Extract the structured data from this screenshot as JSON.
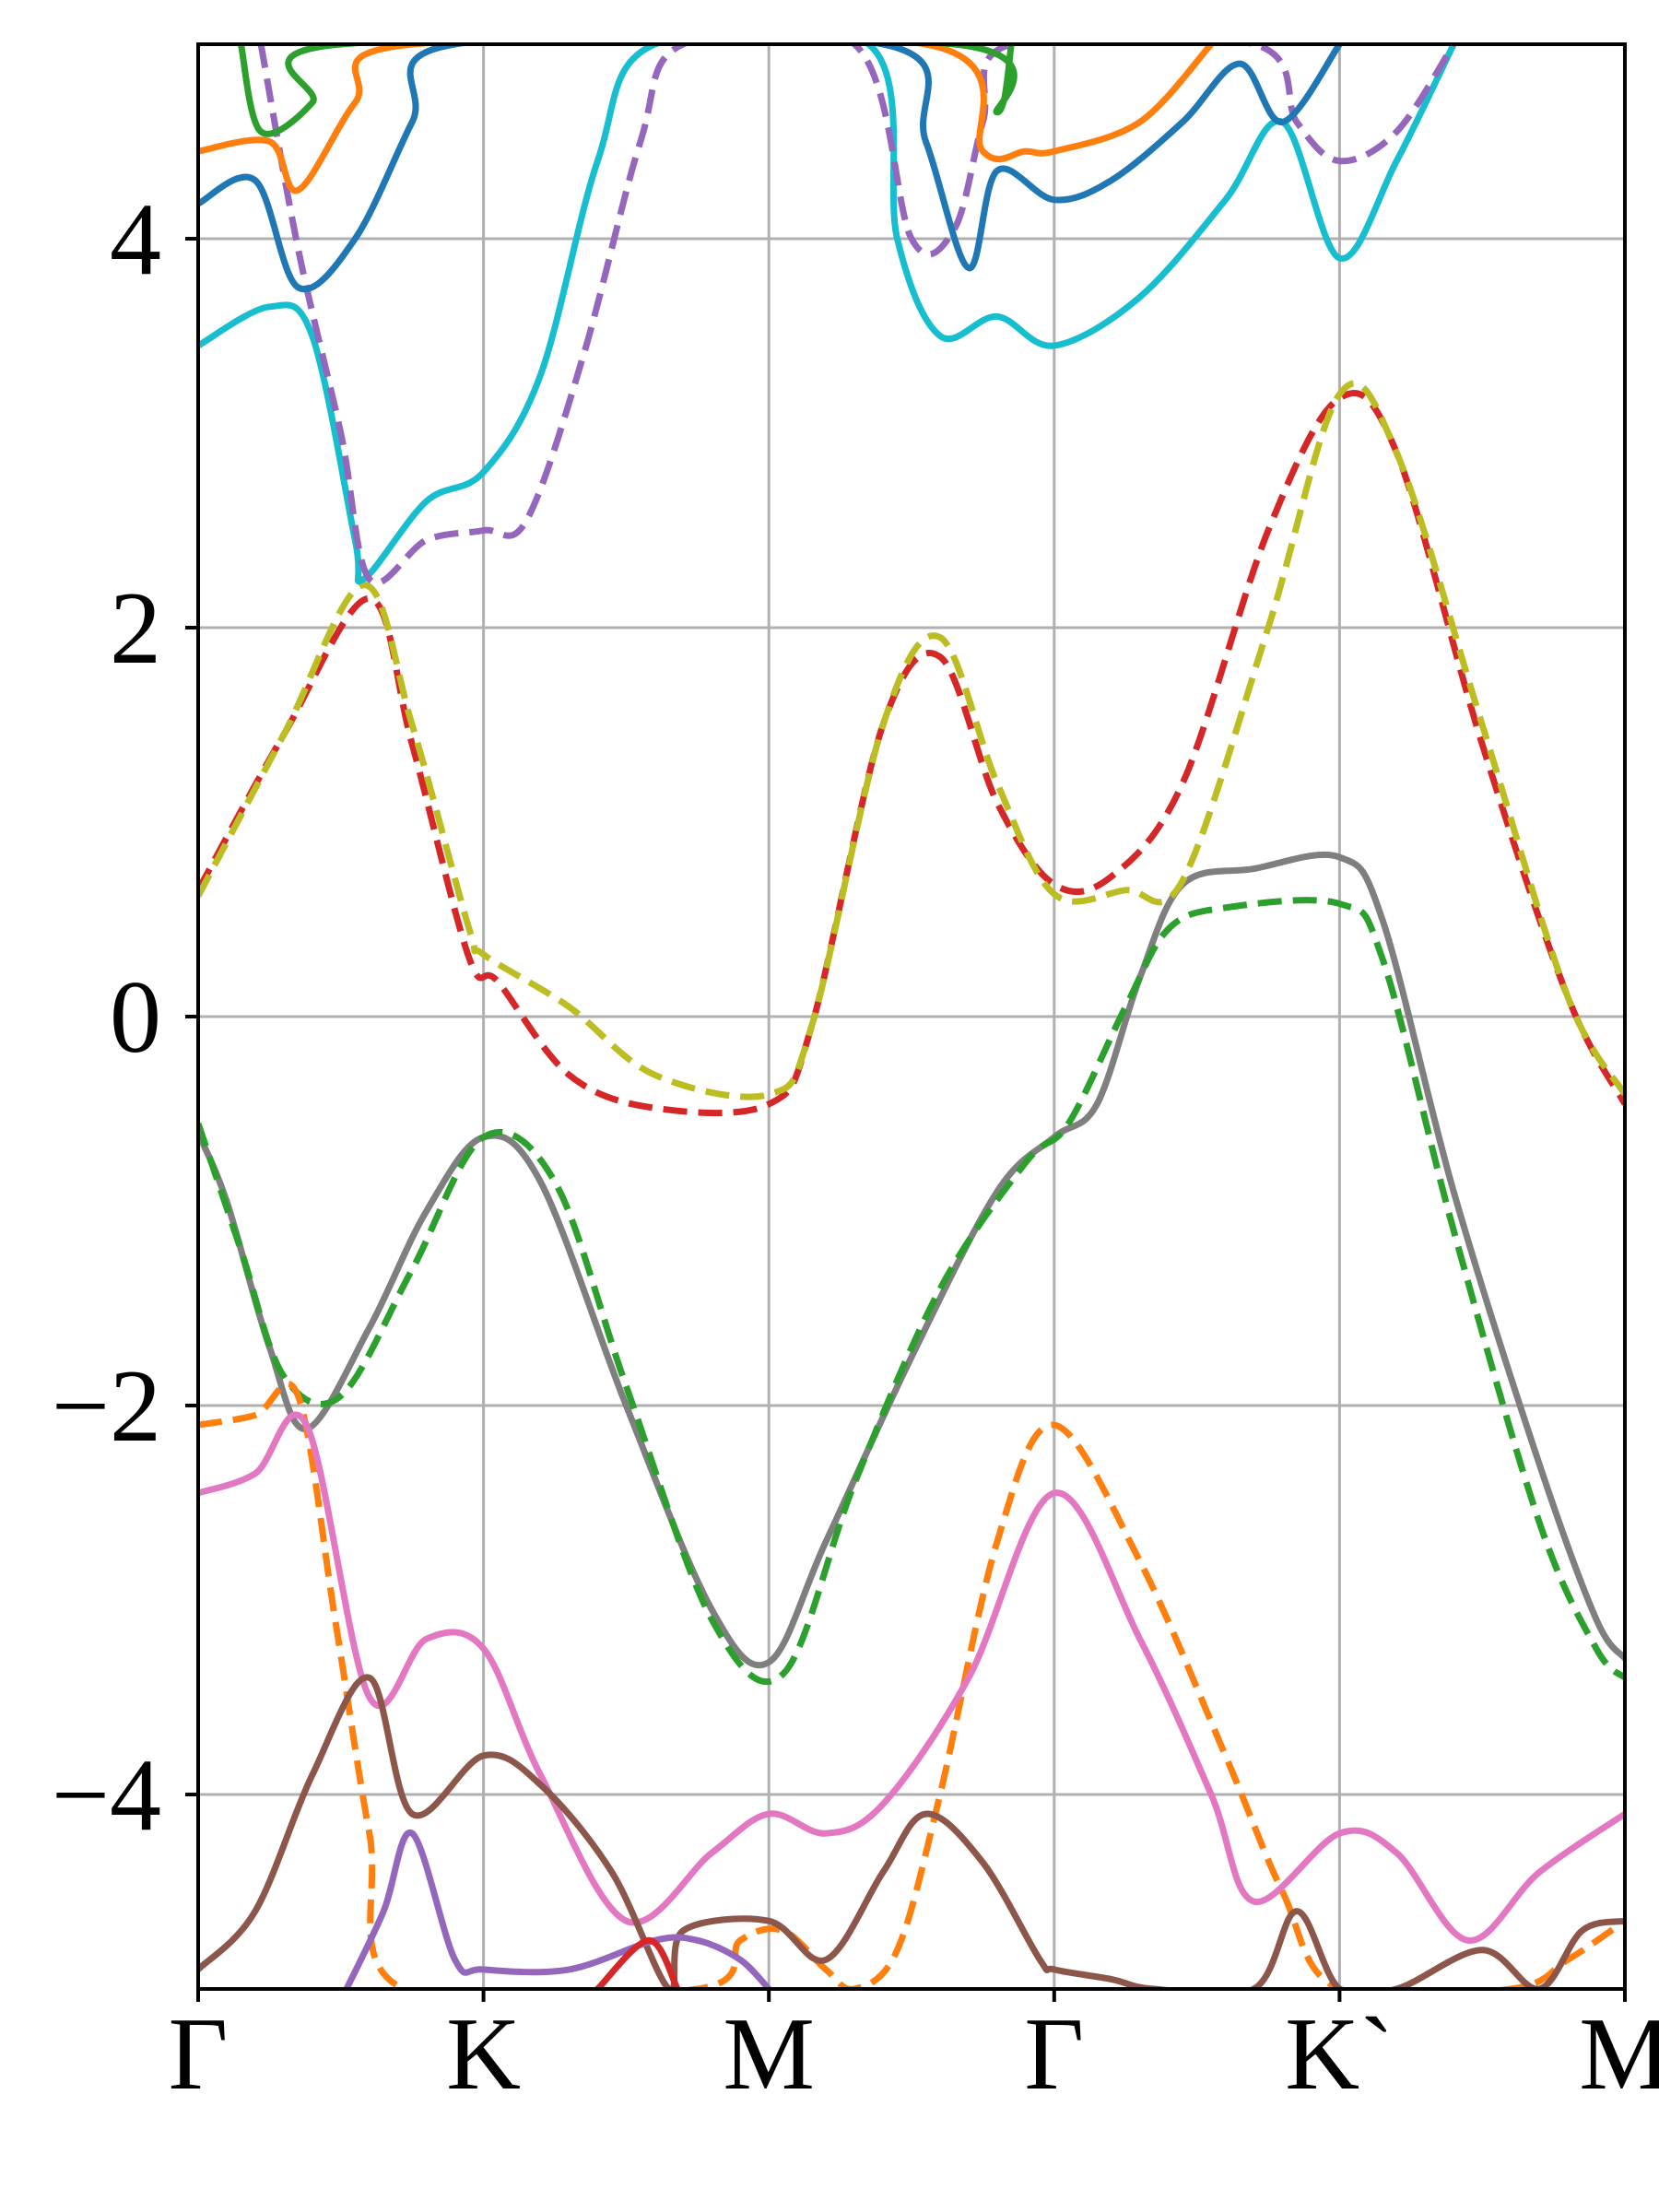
{
  "chart_data": {
    "type": "line",
    "title": "",
    "xlabel": "",
    "ylabel": "",
    "xlim": [
      0,
      5
    ],
    "ylim": [
      -5,
      5
    ],
    "grid": true,
    "legend": "none",
    "x_ticks": [
      {
        "value": 0,
        "label": "Γ"
      },
      {
        "value": 1,
        "label": "K"
      },
      {
        "value": 2,
        "label": "M"
      },
      {
        "value": 3,
        "label": "Γ"
      },
      {
        "value": 4,
        "label": "K`"
      },
      {
        "value": 5,
        "label": "M"
      }
    ],
    "y_ticks": [
      {
        "value": -4,
        "label": "−4"
      },
      {
        "value": -2,
        "label": "−2"
      },
      {
        "value": 0,
        "label": "0"
      },
      {
        "value": 2,
        "label": "2"
      },
      {
        "value": 4,
        "label": "4"
      }
    ],
    "series": [
      {
        "id": "valence-solid-gray",
        "color": "#7f7f7f",
        "dash": false,
        "points": [
          [
            0,
            -0.6
          ],
          [
            0.1,
            -0.95
          ],
          [
            0.25,
            -1.7
          ],
          [
            0.38,
            -2.12
          ],
          [
            0.6,
            -1.6
          ],
          [
            0.8,
            -1.0
          ],
          [
            1.0,
            -0.62
          ],
          [
            1.2,
            -0.85
          ],
          [
            1.5,
            -2.0
          ],
          [
            1.8,
            -3.05
          ],
          [
            2.0,
            -3.32
          ],
          [
            2.2,
            -2.7
          ],
          [
            2.5,
            -1.75
          ],
          [
            2.8,
            -0.9
          ],
          [
            3.0,
            -0.62
          ],
          [
            3.15,
            -0.45
          ],
          [
            3.3,
            0.2
          ],
          [
            3.45,
            0.68
          ],
          [
            3.7,
            0.76
          ],
          [
            4.0,
            0.82
          ],
          [
            4.15,
            0.5
          ],
          [
            4.4,
            -0.9
          ],
          [
            4.7,
            -2.3
          ],
          [
            4.9,
            -3.1
          ],
          [
            5.0,
            -3.3
          ]
        ]
      },
      {
        "id": "valence-dashed-green",
        "color": "#2ca02c",
        "dash": true,
        "points": [
          [
            0,
            -0.55
          ],
          [
            0.15,
            -1.2
          ],
          [
            0.3,
            -1.85
          ],
          [
            0.5,
            -1.95
          ],
          [
            0.75,
            -1.3
          ],
          [
            1.0,
            -0.62
          ],
          [
            1.25,
            -0.85
          ],
          [
            1.5,
            -1.9
          ],
          [
            1.8,
            -3.1
          ],
          [
            2.05,
            -3.38
          ],
          [
            2.3,
            -2.4
          ],
          [
            2.6,
            -1.4
          ],
          [
            2.9,
            -0.75
          ],
          [
            3.05,
            -0.55
          ],
          [
            3.25,
            0.05
          ],
          [
            3.4,
            0.45
          ],
          [
            3.6,
            0.56
          ],
          [
            4.0,
            0.58
          ],
          [
            4.15,
            0.3
          ],
          [
            4.4,
            -1.1
          ],
          [
            4.7,
            -2.6
          ],
          [
            4.9,
            -3.25
          ],
          [
            5.0,
            -3.4
          ]
        ]
      },
      {
        "id": "conduction-dashed-red",
        "color": "#d62728",
        "dash": true,
        "points": [
          [
            0,
            0.65
          ],
          [
            0.3,
            1.45
          ],
          [
            0.6,
            2.15
          ],
          [
            0.75,
            1.4
          ],
          [
            0.95,
            0.3
          ],
          [
            1.05,
            0.18
          ],
          [
            1.3,
            -0.3
          ],
          [
            1.6,
            -0.47
          ],
          [
            2.0,
            -0.45
          ],
          [
            2.15,
            -0.05
          ],
          [
            2.4,
            1.5
          ],
          [
            2.6,
            1.85
          ],
          [
            2.8,
            1.1
          ],
          [
            3.0,
            0.68
          ],
          [
            3.2,
            0.72
          ],
          [
            3.45,
            1.2
          ],
          [
            3.75,
            2.5
          ],
          [
            4.0,
            3.18
          ],
          [
            4.2,
            2.9
          ],
          [
            4.5,
            1.4
          ],
          [
            4.8,
            0.1
          ],
          [
            5.0,
            -0.45
          ]
        ]
      },
      {
        "id": "conduction-solid-olive",
        "color": "#bcbd22",
        "dash": true,
        "points": [
          [
            0,
            0.62
          ],
          [
            0.3,
            1.45
          ],
          [
            0.58,
            2.22
          ],
          [
            0.75,
            1.5
          ],
          [
            0.95,
            0.45
          ],
          [
            1.0,
            0.32
          ],
          [
            1.3,
            0.05
          ],
          [
            1.6,
            -0.3
          ],
          [
            2.0,
            -0.4
          ],
          [
            2.15,
            -0.05
          ],
          [
            2.4,
            1.5
          ],
          [
            2.6,
            1.95
          ],
          [
            2.8,
            1.2
          ],
          [
            3.0,
            0.63
          ],
          [
            3.25,
            0.65
          ],
          [
            3.45,
            0.7
          ],
          [
            3.75,
            2.0
          ],
          [
            4.0,
            3.2
          ],
          [
            4.2,
            2.9
          ],
          [
            4.5,
            1.5
          ],
          [
            4.8,
            0.1
          ],
          [
            5.0,
            -0.4
          ]
        ]
      },
      {
        "id": "upper-solid-cyan",
        "color": "#17becf",
        "dash": false,
        "points": [
          [
            0,
            3.45
          ],
          [
            0.25,
            3.65
          ],
          [
            0.4,
            3.5
          ],
          [
            0.55,
            2.45
          ],
          [
            0.58,
            2.25
          ],
          [
            0.8,
            2.65
          ],
          [
            1.0,
            2.8
          ],
          [
            1.2,
            3.3
          ],
          [
            1.4,
            4.4
          ],
          [
            1.6,
            5.0
          ],
          [
            2.35,
            5.0
          ],
          [
            2.45,
            4.0
          ],
          [
            2.6,
            3.5
          ],
          [
            2.8,
            3.6
          ],
          [
            3.0,
            3.45
          ],
          [
            3.3,
            3.7
          ],
          [
            3.6,
            4.2
          ],
          [
            3.8,
            4.6
          ],
          [
            4.0,
            3.9
          ],
          [
            4.2,
            4.4
          ],
          [
            4.4,
            5.0
          ]
        ]
      },
      {
        "id": "upper-dashed-purple",
        "color": "#9467bd",
        "dash": true,
        "points": [
          [
            0.22,
            5.0
          ],
          [
            0.35,
            3.95
          ],
          [
            0.5,
            3.0
          ],
          [
            0.6,
            2.25
          ],
          [
            0.8,
            2.45
          ],
          [
            1.0,
            2.5
          ],
          [
            1.15,
            2.55
          ],
          [
            1.35,
            3.4
          ],
          [
            1.55,
            4.5
          ],
          [
            1.7,
            5.0
          ],
          [
            2.3,
            5.0
          ],
          [
            2.5,
            4.0
          ],
          [
            2.65,
            4.05
          ],
          [
            2.75,
            4.6
          ],
          [
            2.85,
            5.0
          ],
          [
            3.7,
            5.0
          ],
          [
            3.85,
            4.6
          ],
          [
            4.0,
            4.4
          ],
          [
            4.2,
            4.55
          ],
          [
            4.4,
            5.0
          ]
        ]
      },
      {
        "id": "upper-solid-blue",
        "color": "#1f77b4",
        "dash": false,
        "points": [
          [
            0,
            4.18
          ],
          [
            0.2,
            4.3
          ],
          [
            0.35,
            3.75
          ],
          [
            0.55,
            4.0
          ],
          [
            0.75,
            4.6
          ],
          [
            0.9,
            5.0
          ],
          [
            2.4,
            5.0
          ],
          [
            2.55,
            4.5
          ],
          [
            2.7,
            3.85
          ],
          [
            2.8,
            4.35
          ],
          [
            3.0,
            4.2
          ],
          [
            3.2,
            4.3
          ],
          [
            3.45,
            4.6
          ],
          [
            3.65,
            4.9
          ],
          [
            3.8,
            4.6
          ],
          [
            4.0,
            5.0
          ]
        ]
      },
      {
        "id": "upper-solid-orange",
        "color": "#ff7f0e",
        "dash": false,
        "points": [
          [
            0,
            4.45
          ],
          [
            0.25,
            4.5
          ],
          [
            0.35,
            4.25
          ],
          [
            0.55,
            4.7
          ],
          [
            0.75,
            5.0
          ],
          [
            2.55,
            5.0
          ],
          [
            2.75,
            4.45
          ],
          [
            2.9,
            4.45
          ],
          [
            3.0,
            4.45
          ],
          [
            3.3,
            4.6
          ],
          [
            3.55,
            5.0
          ]
        ]
      },
      {
        "id": "upper-solid-green",
        "color": "#2ca02c",
        "dash": false,
        "points": [
          [
            0.15,
            5.0
          ],
          [
            0.22,
            4.55
          ],
          [
            0.4,
            4.7
          ],
          [
            0.5,
            5.0
          ],
          [
            2.65,
            5.0
          ],
          [
            2.8,
            4.65
          ],
          [
            2.85,
            5.0
          ]
        ]
      },
      {
        "id": "lower-dashed-orange",
        "color": "#ff7f0e",
        "dash": true,
        "points": [
          [
            0,
            -2.1
          ],
          [
            0.2,
            -2.05
          ],
          [
            0.35,
            -1.95
          ],
          [
            0.48,
            -3.1
          ],
          [
            0.6,
            -4.2
          ],
          [
            0.72,
            -5.0
          ],
          [
            1.75,
            -5.0
          ],
          [
            1.9,
            -4.75
          ],
          [
            2.05,
            -4.7
          ],
          [
            2.2,
            -4.9
          ],
          [
            2.3,
            -5.0
          ],
          [
            2.45,
            -4.8
          ],
          [
            2.6,
            -4.0
          ],
          [
            2.8,
            -2.7
          ],
          [
            3.0,
            -2.1
          ],
          [
            3.3,
            -2.8
          ],
          [
            3.6,
            -3.8
          ],
          [
            3.8,
            -4.5
          ],
          [
            4.0,
            -5.0
          ],
          [
            4.6,
            -5.0
          ],
          [
            4.8,
            -4.85
          ],
          [
            5.0,
            -4.65
          ]
        ]
      },
      {
        "id": "lower-solid-pink",
        "color": "#e377c2",
        "dash": false,
        "points": [
          [
            0,
            -2.45
          ],
          [
            0.2,
            -2.35
          ],
          [
            0.38,
            -2.1
          ],
          [
            0.6,
            -3.5
          ],
          [
            0.8,
            -3.2
          ],
          [
            1.0,
            -3.25
          ],
          [
            1.2,
            -3.9
          ],
          [
            1.5,
            -4.65
          ],
          [
            1.8,
            -4.3
          ],
          [
            2.0,
            -4.1
          ],
          [
            2.2,
            -4.2
          ],
          [
            2.4,
            -4.05
          ],
          [
            2.7,
            -3.4
          ],
          [
            3.0,
            -2.45
          ],
          [
            3.3,
            -3.2
          ],
          [
            3.55,
            -4.0
          ],
          [
            3.7,
            -4.55
          ],
          [
            4.0,
            -4.2
          ],
          [
            4.2,
            -4.3
          ],
          [
            4.45,
            -4.75
          ],
          [
            4.7,
            -4.4
          ],
          [
            5.0,
            -4.1
          ]
        ]
      },
      {
        "id": "lower-solid-brown",
        "color": "#8c564b",
        "dash": false,
        "points": [
          [
            0,
            -4.9
          ],
          [
            0.2,
            -4.6
          ],
          [
            0.4,
            -3.9
          ],
          [
            0.6,
            -3.4
          ],
          [
            0.75,
            -4.1
          ],
          [
            1.0,
            -3.8
          ],
          [
            1.2,
            -3.95
          ],
          [
            1.45,
            -4.4
          ],
          [
            1.65,
            -5.0
          ],
          [
            1.7,
            -4.7
          ],
          [
            2.0,
            -4.65
          ],
          [
            2.2,
            -4.85
          ],
          [
            2.4,
            -4.4
          ],
          [
            2.55,
            -4.1
          ],
          [
            2.75,
            -4.35
          ],
          [
            2.95,
            -4.85
          ],
          [
            3.0,
            -4.9
          ],
          [
            3.2,
            -4.95
          ],
          [
            3.35,
            -5.0
          ],
          [
            3.7,
            -5.0
          ],
          [
            3.85,
            -4.6
          ],
          [
            4.0,
            -5.0
          ],
          [
            4.2,
            -5.0
          ],
          [
            4.5,
            -4.8
          ],
          [
            4.7,
            -5.0
          ],
          [
            4.85,
            -4.7
          ],
          [
            5.0,
            -4.65
          ]
        ]
      },
      {
        "id": "lower-solid-purple",
        "color": "#9467bd",
        "dash": false,
        "points": [
          [
            0.52,
            -5.0
          ],
          [
            0.65,
            -4.6
          ],
          [
            0.75,
            -4.2
          ],
          [
            0.9,
            -4.85
          ],
          [
            1.0,
            -4.9
          ],
          [
            1.3,
            -4.9
          ],
          [
            1.6,
            -4.75
          ],
          [
            1.75,
            -4.75
          ],
          [
            1.9,
            -4.85
          ],
          [
            2.0,
            -5.0
          ]
        ]
      },
      {
        "id": "lower-solid-red",
        "color": "#d62728",
        "dash": false,
        "points": [
          [
            1.4,
            -5.0
          ],
          [
            1.58,
            -4.75
          ],
          [
            1.68,
            -5.0
          ]
        ]
      }
    ]
  }
}
